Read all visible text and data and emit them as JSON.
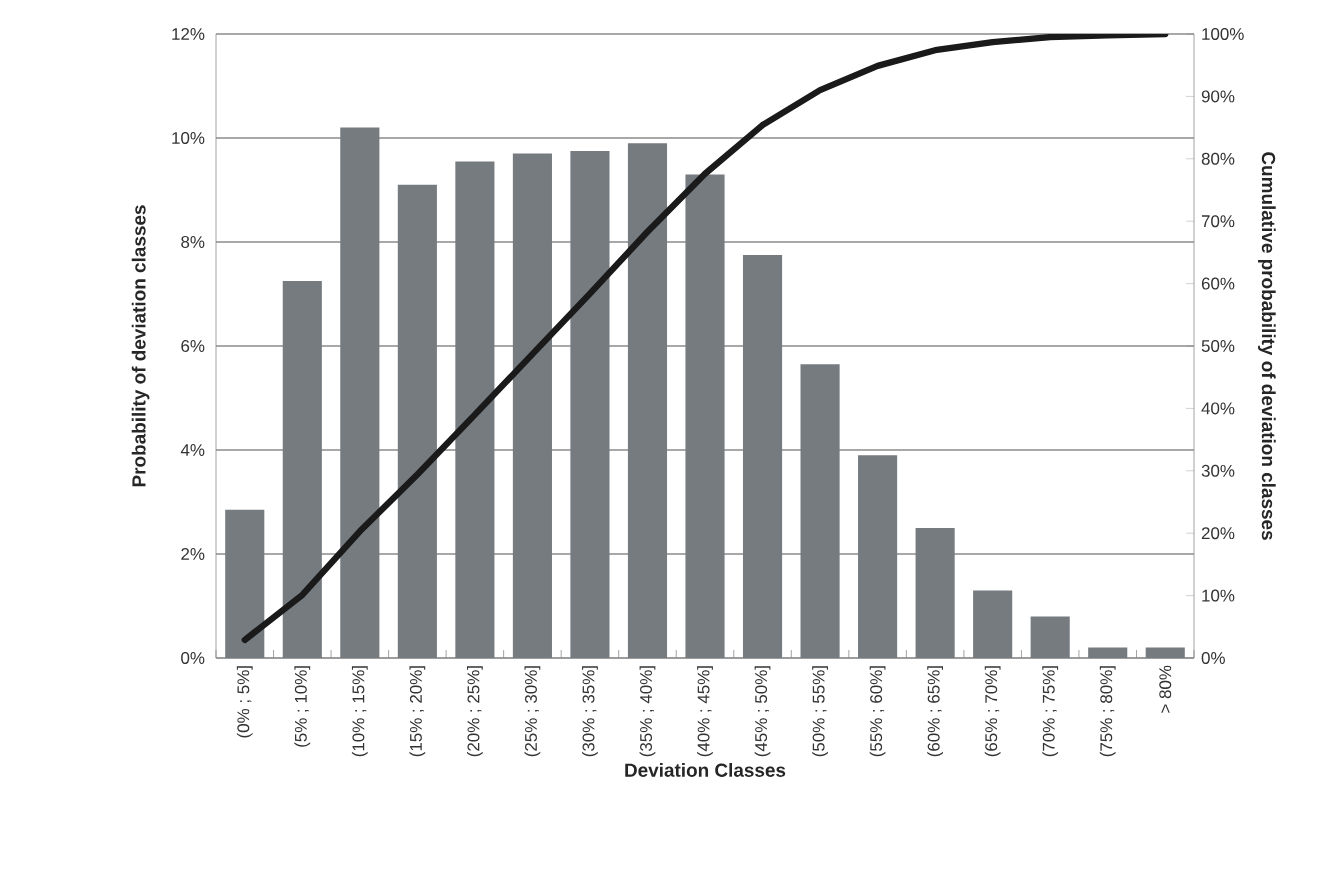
{
  "chart_data": {
    "type": "bar",
    "xlabel": "Deviation Classes",
    "ylabel": "Probability of deviation classes",
    "y2label": "Cumulative probability of deviation classes",
    "categories": [
      "(0% ; 5%]",
      "(5% ; 10%]",
      "(10% ; 15%]",
      "(15% ; 20%]",
      "(20% ; 25%]",
      "(25% ; 30%]",
      "(30% ; 35%]",
      "(35% ; 40%]",
      "(40% ; 45%]",
      "(45% ; 50%]",
      "(50% ; 55%]",
      "(55% ; 60%]",
      "(60% ; 65%]",
      "(65% ; 70%]",
      "(70% ; 75%]",
      "(75% ; 80%]",
      "> 80%"
    ],
    "series": [
      {
        "color": "#767b80",
        "values": [
          2.85,
          7.25,
          10.2,
          9.1,
          9.55,
          9.7,
          9.75,
          9.9,
          9.3,
          7.75,
          5.65,
          3.9,
          2.5,
          1.3,
          0.8,
          0.2,
          0.2
        ]
      },
      {
        "type": "line",
        "axis": "y2",
        "color": "#1a1a1a",
        "marker": "none",
        "values": [
          2.9,
          10.1,
          20.3,
          29.4,
          39.0,
          48.7,
          58.4,
          68.3,
          77.6,
          85.4,
          91.0,
          94.9,
          97.4,
          98.7,
          99.5,
          99.8,
          100
        ]
      }
    ],
    "ylim": [
      0,
      12
    ],
    "yticks": [
      {
        "value": 0,
        "label": "0%"
      },
      {
        "value": 2,
        "label": "2%"
      },
      {
        "value": 4,
        "label": "4%"
      },
      {
        "value": 6,
        "label": "6%"
      },
      {
        "value": 8,
        "label": "8%"
      },
      {
        "value": 10,
        "label": "10%"
      },
      {
        "value": 12,
        "label": "12%"
      }
    ],
    "y2lim": [
      0,
      100
    ],
    "y2ticks": [
      {
        "value": 0,
        "label": "0%"
      },
      {
        "value": 10,
        "label": "10%"
      },
      {
        "value": 20,
        "label": "20%"
      },
      {
        "value": 30,
        "label": "30%"
      },
      {
        "value": 40,
        "label": "40%"
      },
      {
        "value": 50,
        "label": "50%"
      },
      {
        "value": 60,
        "label": "60%"
      },
      {
        "value": 70,
        "label": "70%"
      },
      {
        "value": 80,
        "label": "80%"
      },
      {
        "value": 90,
        "label": "90%"
      },
      {
        "value": 100,
        "label": "100%"
      }
    ],
    "grid": "y"
  }
}
